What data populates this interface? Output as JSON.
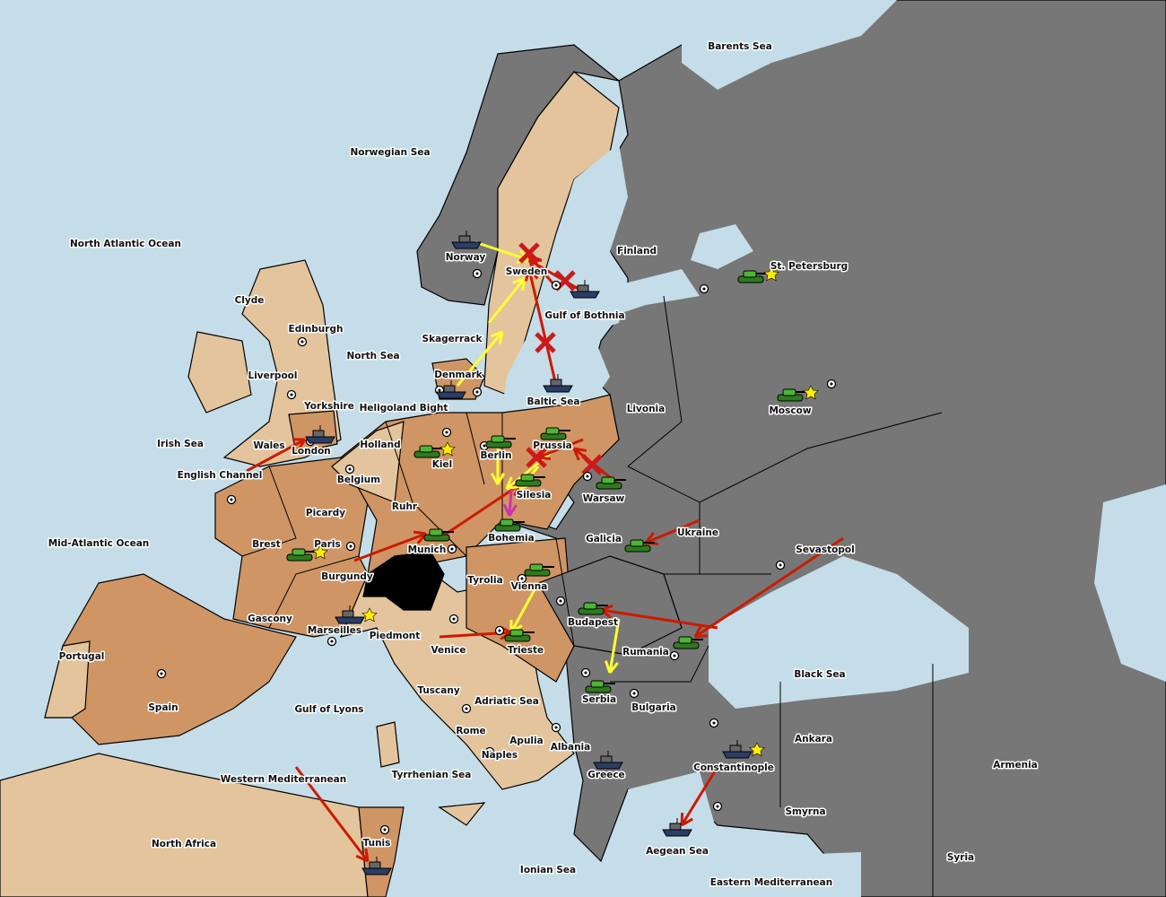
{
  "colors": {
    "sea": "#c5dde8",
    "neutral_land": "#e3c49c",
    "power_orange": "#cf9565",
    "power_grey": "#777777",
    "switzerland": "#000000",
    "order_red": "#cc1a00",
    "order_yellow": "#ffff33",
    "order_magenta": "#cc33aa",
    "supply_star": "#ffee00"
  },
  "labels": [
    "Barents Sea",
    "Norwegian Sea",
    "North Atlantic Ocean",
    "Clyde",
    "Edinburgh",
    "Liverpool",
    "Yorkshire",
    "North Sea",
    "Irish Sea",
    "Wales",
    "London",
    "English Channel",
    "Holland",
    "Belgium",
    "Heligoland Bight",
    "Kiel",
    "Berlin",
    "Prussia",
    "Ruhr",
    "Picardy",
    "Brest",
    "Paris",
    "Burgundy",
    "Gascony",
    "Marseilles",
    "Mid-Atlantic Ocean",
    "Portugal",
    "Spain",
    "Gulf of Lyons",
    "Western Mediterranean",
    "North Africa",
    "Tunis",
    "Tyrrhenian Sea",
    "Ionian Sea",
    "Naples",
    "Rome",
    "Apulia",
    "Tuscany",
    "Venice",
    "Piedmont",
    "Tyrolia",
    "Munich",
    "Bohemia",
    "Silesia",
    "Warsaw",
    "Galicia",
    "Vienna",
    "Trieste",
    "Budapest",
    "Adriatic Sea",
    "Albania",
    "Serbia",
    "Greece",
    "Bulgaria",
    "Rumania",
    "Ukraine",
    "Sevastopol",
    "Black Sea",
    "Moscow",
    "St. Petersburg",
    "Livonia",
    "Finland",
    "Sweden",
    "Norway",
    "Denmark",
    "Skagerrack",
    "Baltic Sea",
    "Gulf of Bothnia",
    "Ankara",
    "Armenia",
    "Constantinople",
    "Smyrna",
    "Syria",
    "Aegean Sea",
    "Eastern Mediterranean"
  ],
  "units": [
    {
      "type": "fleet",
      "province": "Norway"
    },
    {
      "type": "fleet",
      "province": "Gulf of Bothnia"
    },
    {
      "type": "fleet",
      "province": "Baltic Sea"
    },
    {
      "type": "fleet",
      "province": "Denmark"
    },
    {
      "type": "fleet",
      "province": "London"
    },
    {
      "type": "fleet",
      "province": "Marseilles"
    },
    {
      "type": "fleet",
      "province": "Tunis"
    },
    {
      "type": "fleet",
      "province": "Greece"
    },
    {
      "type": "fleet",
      "province": "Constantinople"
    },
    {
      "type": "fleet",
      "province": "Aegean Sea"
    },
    {
      "type": "army",
      "province": "St. Petersburg"
    },
    {
      "type": "army",
      "province": "Moscow"
    },
    {
      "type": "army",
      "province": "Kiel"
    },
    {
      "type": "army",
      "province": "Berlin"
    },
    {
      "type": "army",
      "province": "Prussia"
    },
    {
      "type": "army",
      "province": "Silesia"
    },
    {
      "type": "army",
      "province": "Warsaw"
    },
    {
      "type": "army",
      "province": "Bohemia"
    },
    {
      "type": "army",
      "province": "Munich"
    },
    {
      "type": "army",
      "province": "Paris"
    },
    {
      "type": "army",
      "province": "Galicia"
    },
    {
      "type": "army",
      "province": "Vienna"
    },
    {
      "type": "army",
      "province": "Budapest"
    },
    {
      "type": "army",
      "province": "Trieste"
    },
    {
      "type": "army",
      "province": "Serbia"
    },
    {
      "type": "army",
      "province": "Rumania"
    }
  ],
  "home_centers": [
    "St. Petersburg",
    "Moscow",
    "Kiel",
    "Paris",
    "Marseilles",
    "Constantinople"
  ]
}
